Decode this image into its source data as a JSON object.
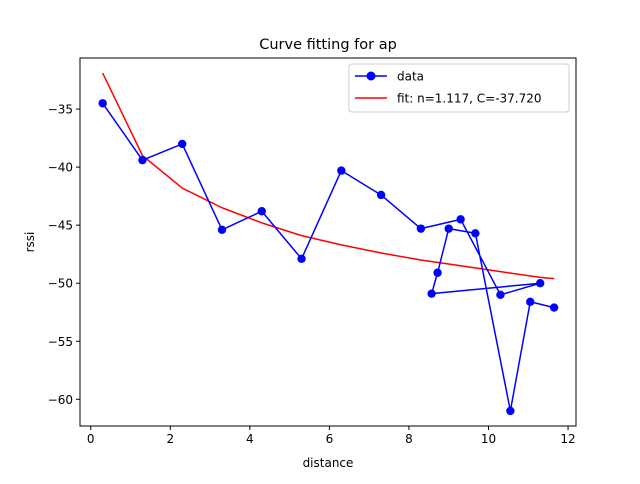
{
  "chart_data": {
    "type": "line",
    "title": "Curve fitting for ap",
    "xlabel": "distance",
    "ylabel": "rssi",
    "xlim": [
      -0.27,
      12.2
    ],
    "ylim": [
      -62.3,
      -30.6
    ],
    "xticks": [
      0,
      2,
      4,
      6,
      8,
      10,
      12
    ],
    "yticks": [
      -35,
      -40,
      -45,
      -50,
      -55,
      -60
    ],
    "xtick_labels": [
      "0",
      "2",
      "4",
      "6",
      "8",
      "10",
      "12"
    ],
    "ytick_labels": [
      "−35",
      "−40",
      "−45",
      "−50",
      "−55",
      "−60"
    ],
    "grid": false,
    "legend_position": "top-right",
    "series": [
      {
        "name": "data",
        "color": "#0000ff",
        "marker": "circle",
        "x": [
          0.3,
          1.3,
          2.3,
          3.3,
          4.3,
          5.3,
          6.3,
          7.3,
          8.3,
          9.3,
          10.3,
          11.3,
          8.57,
          8.72,
          9.0,
          9.67,
          10.55,
          11.05,
          11.65
        ],
        "y": [
          -34.5,
          -39.4,
          -38.0,
          -45.4,
          -43.8,
          -47.9,
          -40.3,
          -42.4,
          -45.3,
          -44.5,
          -51.0,
          -50.0,
          -50.9,
          -49.1,
          -45.3,
          -45.7,
          -61.0,
          -51.6,
          -52.1
        ]
      },
      {
        "name": "fit: n=1.117, C=-37.720",
        "color": "#ff0000",
        "marker": "none",
        "x": [
          0.3,
          1.3,
          2.3,
          3.3,
          4.3,
          5.3,
          6.3,
          7.3,
          8.3,
          9.3,
          10.3,
          11.3,
          11.65
        ],
        "y": [
          -31.9,
          -39.0,
          -41.8,
          -43.5,
          -44.8,
          -45.9,
          -46.7,
          -47.4,
          -48.0,
          -48.5,
          -49.0,
          -49.5,
          -49.6
        ]
      }
    ]
  }
}
